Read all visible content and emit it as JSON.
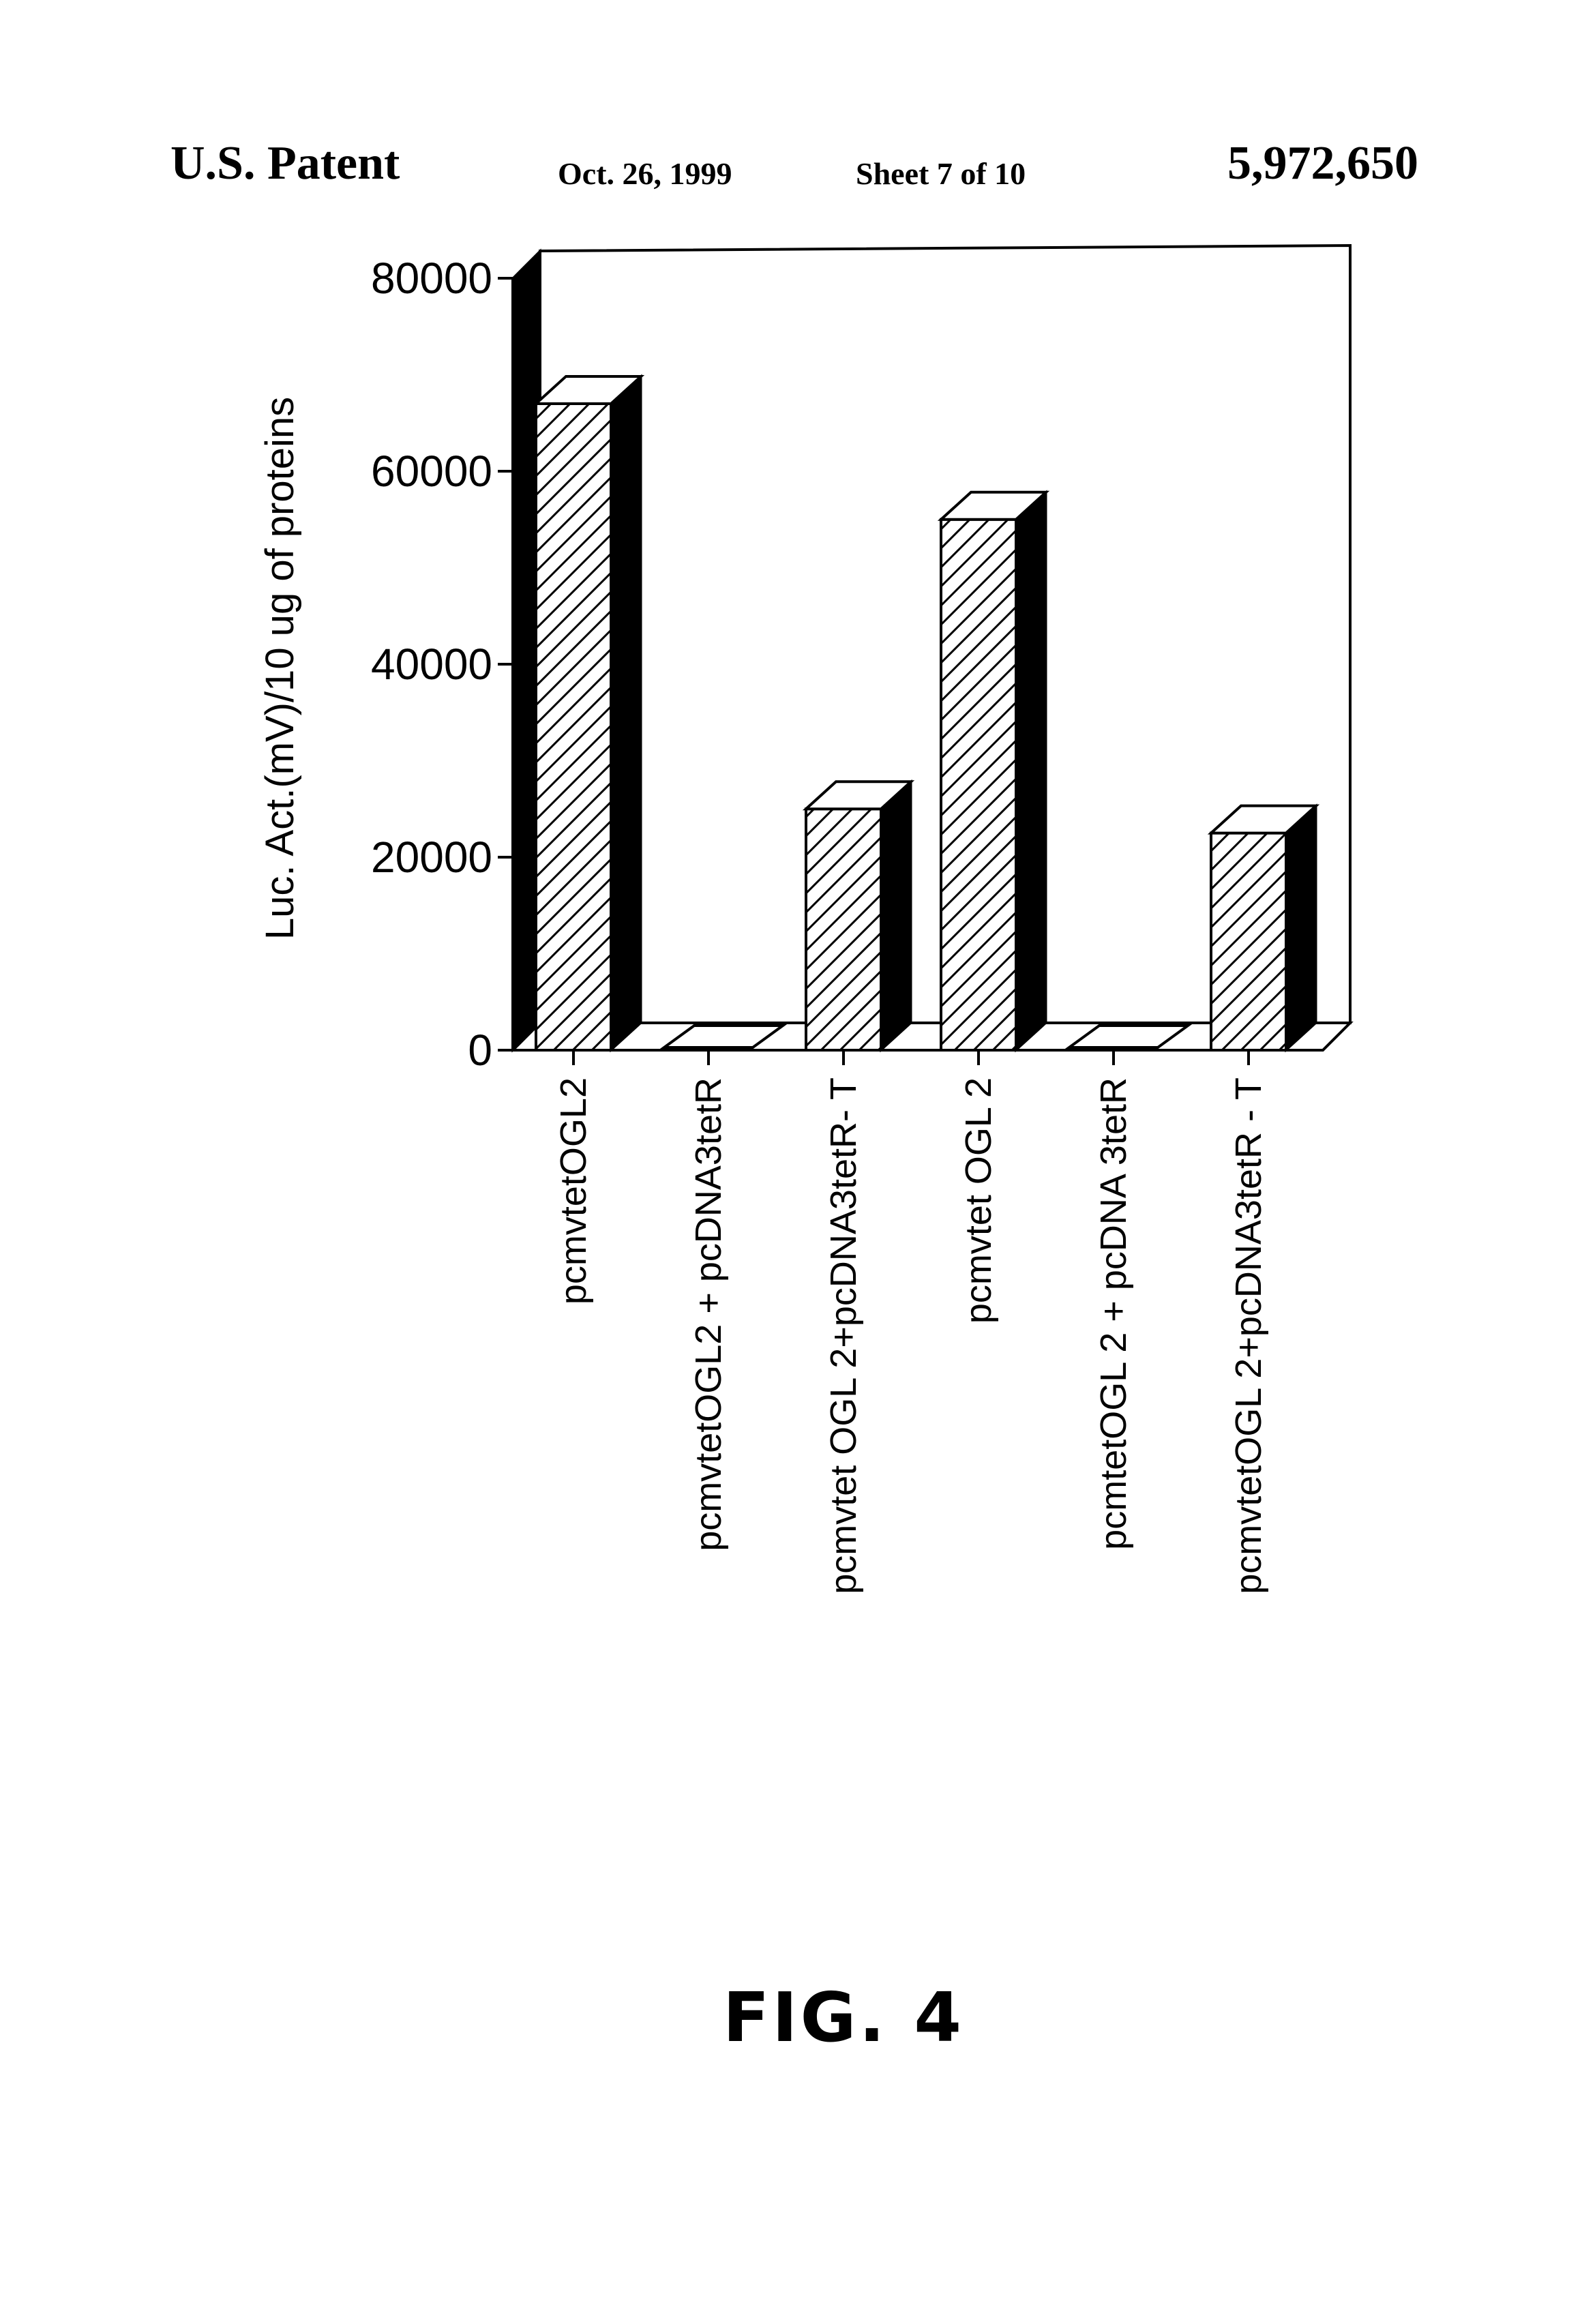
{
  "header": {
    "left": "U.S. Patent",
    "date": "Oct. 26, 1999",
    "sheet": "Sheet 7 of 10",
    "number": "5,972,650"
  },
  "figure_label": "FIG. 4",
  "chart_data": {
    "type": "bar",
    "style": "3d-hatched",
    "ylabel": "Luc. Act.(mV)/10 ug of proteins",
    "xlabel": "",
    "ylim": [
      0,
      80000
    ],
    "yticks": [
      0,
      20000,
      40000,
      60000,
      80000
    ],
    "ytick_labels": [
      "0",
      "20000",
      "40000",
      "60000",
      "80000"
    ],
    "categories": [
      "pcmvtetOGL2",
      "pcmvtetOGL2 + pcDNA3tetR",
      "pcmvtet OGL 2+pcDNA3tetR- T",
      "pcmvtet OGL 2",
      "pcmtetOGL 2 + pcDNA 3tetR",
      "pcmvtetOGL 2+pcDNA3tetR - T"
    ],
    "values": [
      67000,
      300,
      25000,
      55000,
      300,
      22500
    ],
    "grid": false,
    "legend": "none"
  }
}
